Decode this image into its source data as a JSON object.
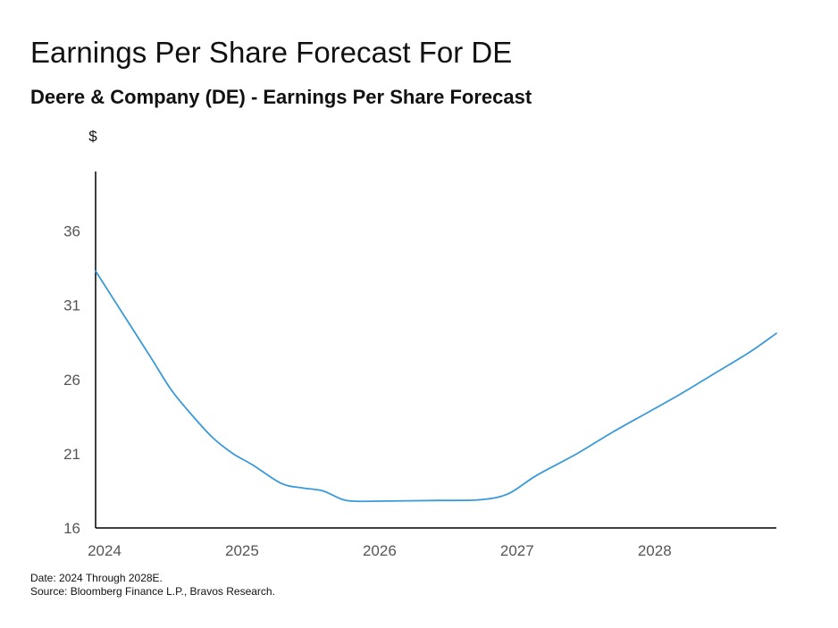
{
  "header": {
    "title": "Earnings Per Share Forecast For DE",
    "subtitle": "Deere & Company (DE) - Earnings Per Share Forecast"
  },
  "footer": {
    "date_note": "Date: 2024 Through 2028E.",
    "source_note": "Source: Bloomberg Finance L.P., Bravos Research."
  },
  "chart_data": {
    "type": "line",
    "title": "Earnings Per Share Forecast For DE",
    "subtitle": "Deere & Company (DE) - Earnings Per Share Forecast",
    "ylabel": "$",
    "xlabel": "",
    "xlim": [
      2024,
      2028.95
    ],
    "ylim": [
      16,
      40
    ],
    "x_ticks": [
      2024,
      2025,
      2026,
      2027,
      2028
    ],
    "x_tick_labels": [
      "2024",
      "2025",
      "2026",
      "2027",
      "2028"
    ],
    "y_ticks": [
      16,
      21,
      26,
      31,
      36
    ],
    "y_tick_labels": [
      "16",
      "21",
      "26",
      "31",
      "36"
    ],
    "grid": false,
    "line_color": "#3a9ad9",
    "series": [
      {
        "x": [
          2024.0,
          2024.2,
          2024.4,
          2024.55,
          2024.7,
          2024.85,
          2025.0,
          2025.15,
          2025.35,
          2025.5,
          2025.65,
          2025.8,
          2025.9,
          2026.0,
          2026.5,
          2026.8,
          2027.0,
          2027.2,
          2027.5,
          2027.75,
          2028.0,
          2028.25,
          2028.5,
          2028.75,
          2028.95
        ],
        "values": [
          33.3,
          30.4,
          27.5,
          25.3,
          23.6,
          22.1,
          21.0,
          20.2,
          19.0,
          18.7,
          18.5,
          17.9,
          17.8,
          17.8,
          17.85,
          17.9,
          18.3,
          19.5,
          21.0,
          22.4,
          23.7,
          25.0,
          26.4,
          27.8,
          29.1
        ]
      }
    ]
  }
}
